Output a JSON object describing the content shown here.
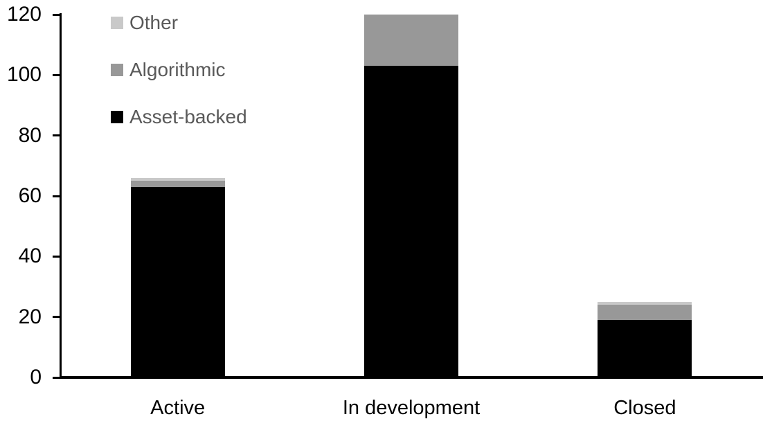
{
  "chart_data": {
    "type": "bar",
    "stacked": true,
    "title": "",
    "xlabel": "",
    "ylabel": "",
    "categories": [
      "Active",
      "In development",
      "Closed"
    ],
    "series": [
      {
        "name": "Asset-backed",
        "color": "#000000",
        "values": [
          63,
          103,
          19
        ]
      },
      {
        "name": "Algorithmic",
        "color": "#989898",
        "values": [
          2,
          17,
          5
        ]
      },
      {
        "name": "Other",
        "color": "#c9c9c9",
        "values": [
          1,
          0,
          1
        ]
      }
    ],
    "totals": [
      66,
      120,
      25
    ],
    "ylim": [
      0,
      120
    ],
    "yticks": [
      0,
      20,
      40,
      60,
      80,
      100,
      120
    ],
    "grid": false,
    "legend_position": "top-left",
    "legend_order": [
      "Other",
      "Algorithmic",
      "Asset-backed"
    ],
    "colors": {
      "axis": "#000000",
      "tick_label": "#000000",
      "category_label": "#000000",
      "legend_text": "#595959",
      "background": "#ffffff"
    }
  }
}
